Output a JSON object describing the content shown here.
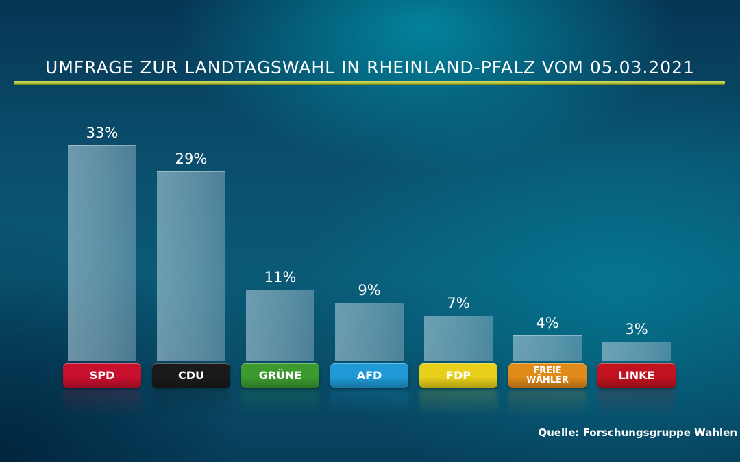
{
  "chart_data": {
    "type": "bar",
    "title": "UMFRAGE ZUR LANDTAGSWAHL IN RHEINLAND-PFALZ VOM 05.03.2021",
    "categories": [
      "SPD",
      "CDU",
      "GRÜNE",
      "AFD",
      "FDP",
      "FREIE WÄHLER",
      "LINKE"
    ],
    "values": [
      33,
      29,
      11,
      9,
      7,
      4,
      3
    ],
    "value_labels": [
      "33%",
      "29%",
      "11%",
      "9%",
      "7%",
      "4%",
      "3%"
    ],
    "category_colors": [
      "#c8102e",
      "#1a1a1a",
      "#3d9a2f",
      "#1f9ad6",
      "#e8d01a",
      "#e08a1a",
      "#c0121f"
    ],
    "ylim": [
      0,
      33
    ],
    "grid": false,
    "legend": "none"
  },
  "source": "Quelle: Forschungsgruppe Wahlen"
}
